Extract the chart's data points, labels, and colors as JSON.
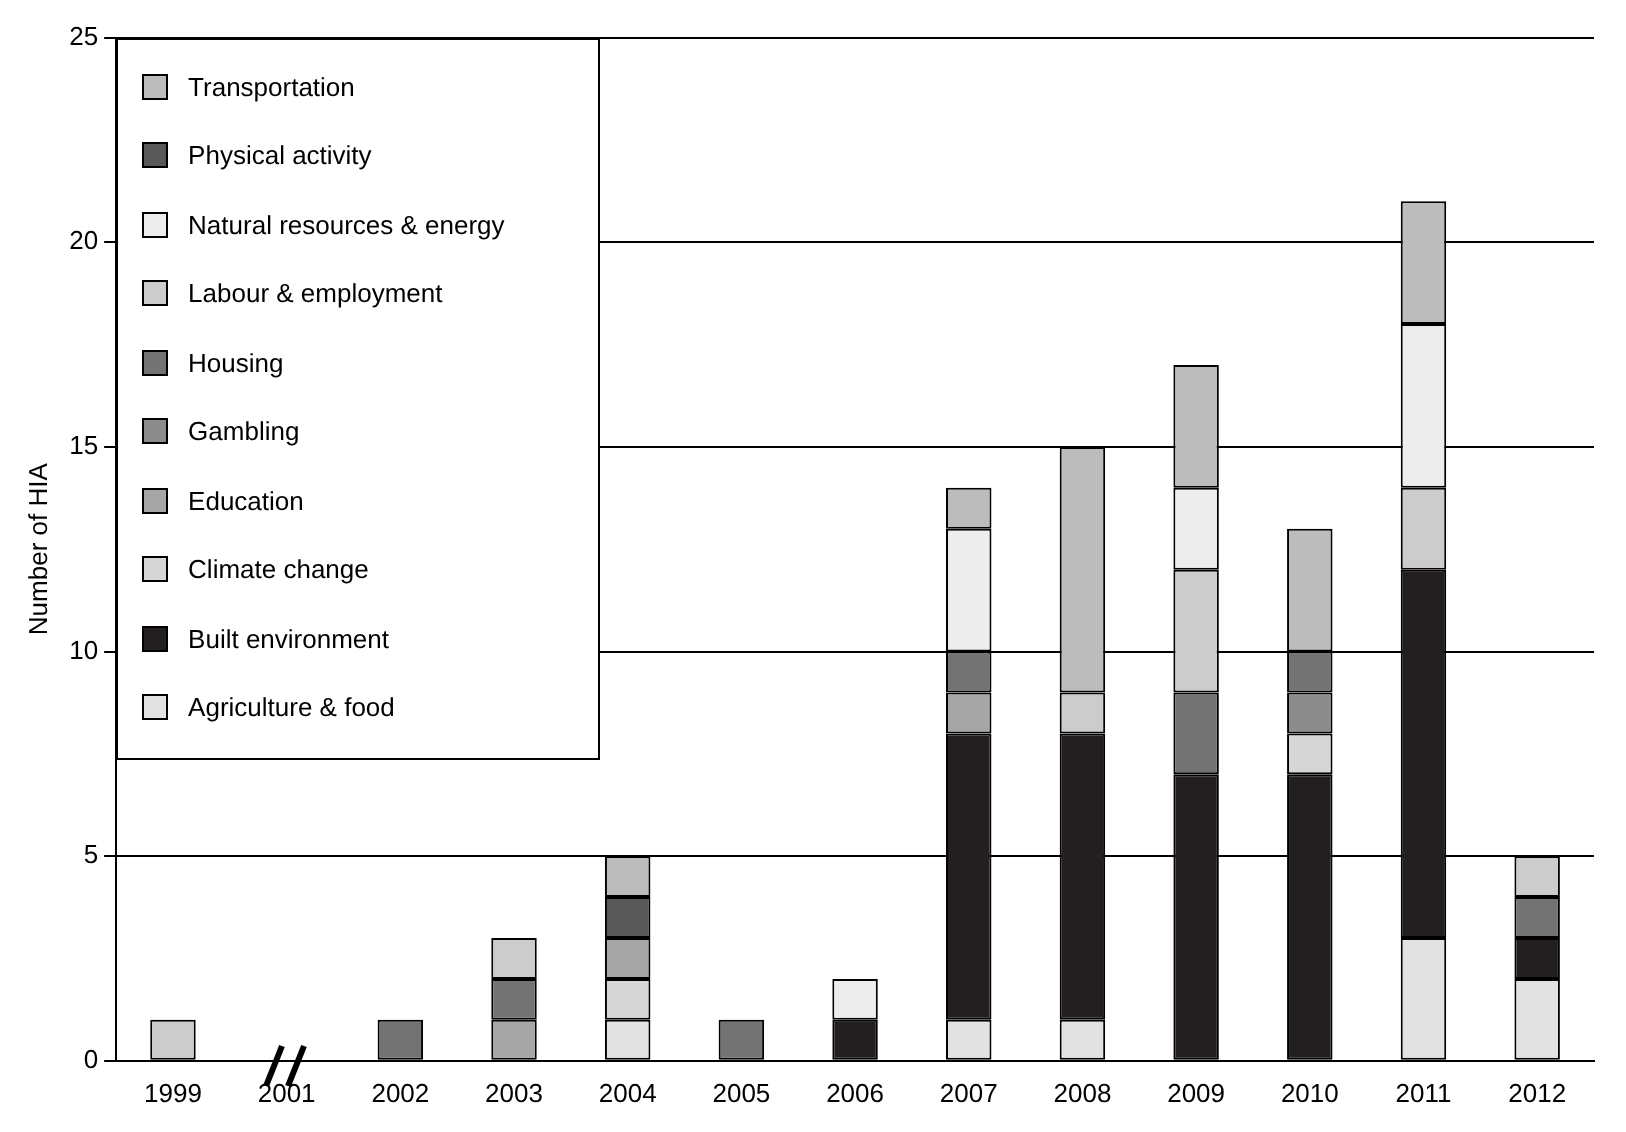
{
  "chart_data": {
    "type": "bar",
    "stacked": true,
    "ylabel": "Number of HIA",
    "categories": [
      "1999",
      "2001",
      "2002",
      "2003",
      "2004",
      "2005",
      "2006",
      "2007",
      "2008",
      "2009",
      "2010",
      "2011",
      "2012"
    ],
    "series": [
      {
        "name": "Agriculture & food",
        "color": "#e2e2e2",
        "values": [
          0,
          0,
          0,
          0,
          1,
          0,
          0,
          1,
          1,
          0,
          0,
          3,
          2
        ]
      },
      {
        "name": "Built environment",
        "color": "#231f20",
        "values": [
          0,
          0,
          0,
          0,
          0,
          0,
          1,
          7,
          7,
          7,
          7,
          9,
          1
        ]
      },
      {
        "name": "Climate change",
        "color": "#d6d6d6",
        "values": [
          0,
          0,
          0,
          0,
          1,
          0,
          0,
          0,
          0,
          0,
          1,
          0,
          0
        ]
      },
      {
        "name": "Education",
        "color": "#a6a6a6",
        "values": [
          0,
          0,
          0,
          1,
          1,
          0,
          0,
          1,
          0,
          0,
          0,
          0,
          0
        ]
      },
      {
        "name": "Gambling",
        "color": "#8c8c8c",
        "values": [
          0,
          0,
          0,
          0,
          0,
          0,
          0,
          0,
          0,
          0,
          1,
          0,
          0
        ]
      },
      {
        "name": "Housing",
        "color": "#737373",
        "values": [
          0,
          0,
          1,
          1,
          0,
          1,
          0,
          1,
          0,
          2,
          1,
          0,
          1
        ]
      },
      {
        "name": "Labour & employment",
        "color": "#cccccc",
        "values": [
          1,
          0,
          0,
          1,
          0,
          0,
          0,
          0,
          1,
          3,
          0,
          2,
          1
        ]
      },
      {
        "name": "Natural resources & energy",
        "color": "#ededed",
        "values": [
          0,
          0,
          0,
          0,
          0,
          0,
          1,
          3,
          0,
          2,
          0,
          4,
          0
        ]
      },
      {
        "name": "Physical activity",
        "color": "#595959",
        "values": [
          0,
          0,
          0,
          0,
          1,
          0,
          0,
          0,
          0,
          0,
          0,
          0,
          0
        ]
      },
      {
        "name": "Transportation",
        "color": "#bcbcbc",
        "values": [
          0,
          0,
          0,
          0,
          1,
          0,
          0,
          1,
          6,
          3,
          3,
          3,
          0
        ]
      }
    ],
    "ylim": [
      0,
      25
    ],
    "yticks": [
      0,
      5,
      10,
      15,
      20,
      25
    ],
    "grid": "y",
    "legend": "top left"
  }
}
